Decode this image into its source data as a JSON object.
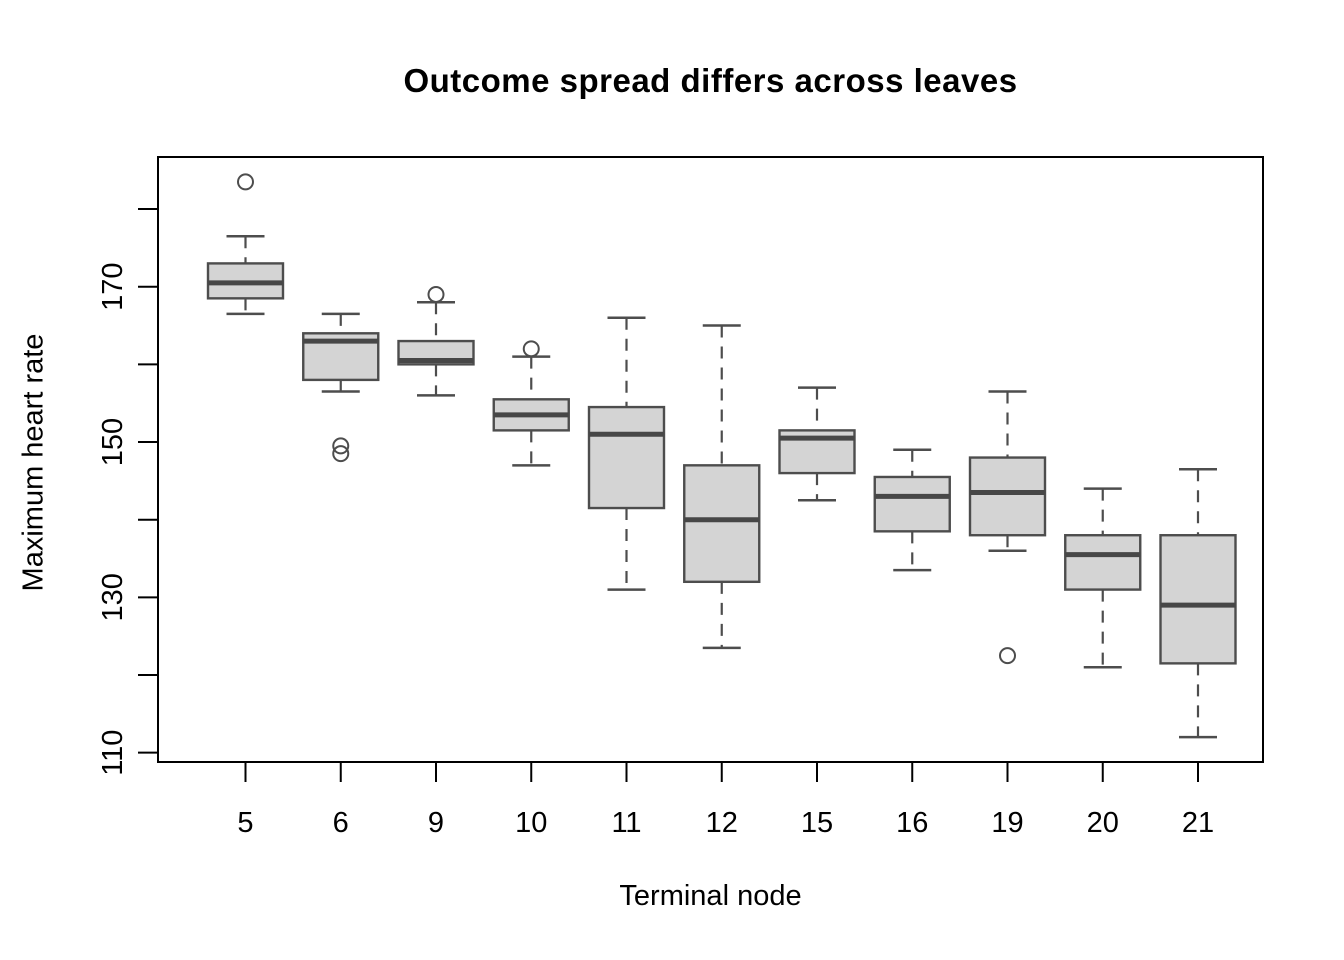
{
  "figure": {
    "title": "Outcome spread differs across leaves",
    "xlabel": "Terminal node",
    "ylabel": "Maximum heart rate"
  },
  "chart_data": {
    "type": "boxplot",
    "title": "Outcome spread differs across leaves",
    "xlabel": "Terminal node",
    "ylabel": "Maximum heart rate",
    "categories": [
      "5",
      "6",
      "9",
      "10",
      "11",
      "12",
      "15",
      "16",
      "19",
      "20",
      "21"
    ],
    "ylim": [
      108.8,
      186.7
    ],
    "yticks": [
      110,
      120,
      130,
      140,
      150,
      160,
      170,
      180
    ],
    "ytick_labels": [
      "110",
      "130",
      "150",
      "170"
    ],
    "grid": false,
    "legend": "none",
    "series": [
      {
        "category": "5",
        "low": 166.5,
        "q1": 168.5,
        "median": 170.5,
        "q3": 173,
        "high": 176.5,
        "outliers": [
          183.5
        ]
      },
      {
        "category": "6",
        "low": 156.5,
        "q1": 158,
        "median": 163,
        "q3": 164,
        "high": 166.5,
        "outliers": [
          149.5,
          148.5
        ]
      },
      {
        "category": "9",
        "low": 156,
        "q1": 160,
        "median": 160.5,
        "q3": 163,
        "high": 168,
        "outliers": [
          169
        ]
      },
      {
        "category": "10",
        "low": 147,
        "q1": 151.5,
        "median": 153.5,
        "q3": 155.5,
        "high": 161,
        "outliers": [
          162
        ]
      },
      {
        "category": "11",
        "low": 131,
        "q1": 141.5,
        "median": 151,
        "q3": 154.5,
        "high": 166,
        "outliers": []
      },
      {
        "category": "12",
        "low": 123.5,
        "q1": 132,
        "median": 140,
        "q3": 147,
        "high": 165,
        "outliers": []
      },
      {
        "category": "15",
        "low": 142.5,
        "q1": 146,
        "median": 150.5,
        "q3": 151.5,
        "high": 157,
        "outliers": []
      },
      {
        "category": "16",
        "low": 133.5,
        "q1": 138.5,
        "median": 143,
        "q3": 145.5,
        "high": 149,
        "outliers": []
      },
      {
        "category": "19",
        "low": 136,
        "q1": 138,
        "median": 143.5,
        "q3": 148,
        "high": 156.5,
        "outliers": [
          122.5
        ]
      },
      {
        "category": "20",
        "low": 121,
        "q1": 131,
        "median": 135.5,
        "q3": 138,
        "high": 144,
        "outliers": []
      },
      {
        "category": "21",
        "low": 112,
        "q1": 121.5,
        "median": 129,
        "q3": 138,
        "high": 146.5,
        "outliers": []
      }
    ],
    "colors": {
      "box_fill": "#d4d4d4",
      "box_border": "#4d4d4d",
      "median_line": "#474747",
      "whisker": "#4d4d4d",
      "outlier_stroke": "#4d4d4d",
      "axis": "#000000",
      "background": "#ffffff"
    }
  }
}
